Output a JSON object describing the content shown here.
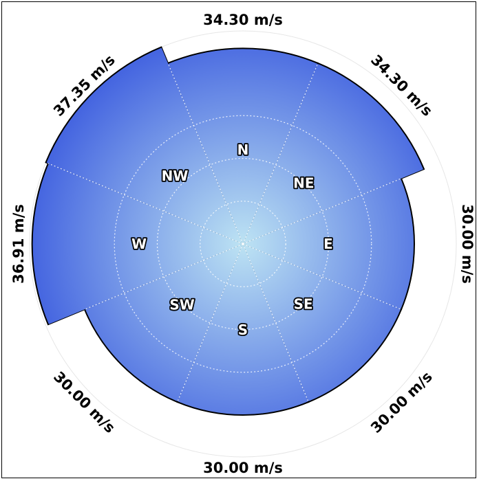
{
  "chart_data": {
    "type": "polar-area",
    "unit": "m/s",
    "axis_max": 37.35,
    "directions": [
      "N",
      "NE",
      "E",
      "SE",
      "S",
      "SW",
      "W",
      "NW"
    ],
    "values": [
      34.3,
      34.3,
      30.0,
      30.0,
      30.0,
      30.0,
      36.91,
      37.35
    ],
    "value_labels": [
      "34.30 m/s",
      "34.30 m/s",
      "30.00 m/s",
      "30.00 m/s",
      "30.00 m/s",
      "30.00 m/s",
      "36.91 m/s",
      "37.35 m/s"
    ],
    "colors": {
      "fill_outer": "#4464e0",
      "fill_inner": "#bde3f3",
      "outline": "#000000",
      "grid": "#ffffff"
    },
    "grid": true
  }
}
